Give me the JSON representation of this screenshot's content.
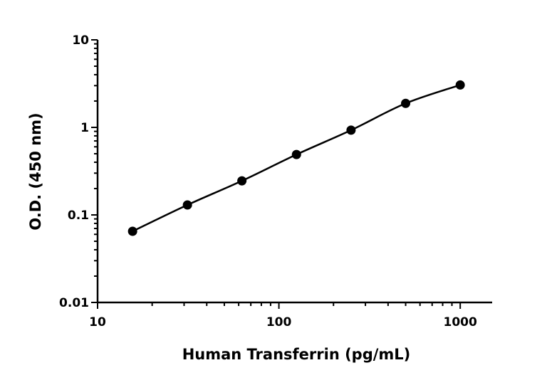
{
  "chart_data": {
    "type": "scatter",
    "title": "",
    "xlabel": "Human Transferrin (pg/mL)",
    "ylabel": "O.D. (450 nm)",
    "xscale": "log",
    "yscale": "log",
    "xlim": [
      10,
      1500
    ],
    "ylim": [
      0.01,
      10
    ],
    "x_ticks": [
      10,
      100,
      1000
    ],
    "x_tick_labels": [
      "10",
      "100",
      "1000"
    ],
    "y_ticks": [
      0.01,
      0.1,
      1,
      10
    ],
    "y_tick_labels": [
      "0.01",
      "0.1",
      "1",
      "10"
    ],
    "grid": false,
    "legend": false,
    "series": [
      {
        "x": [
          15.6,
          31.3,
          62.5,
          125,
          250,
          500,
          1000
        ],
        "y": [
          0.065,
          0.13,
          0.245,
          0.49,
          0.93,
          1.88,
          3.05
        ],
        "fit_line": true,
        "color": "#000000"
      }
    ]
  }
}
